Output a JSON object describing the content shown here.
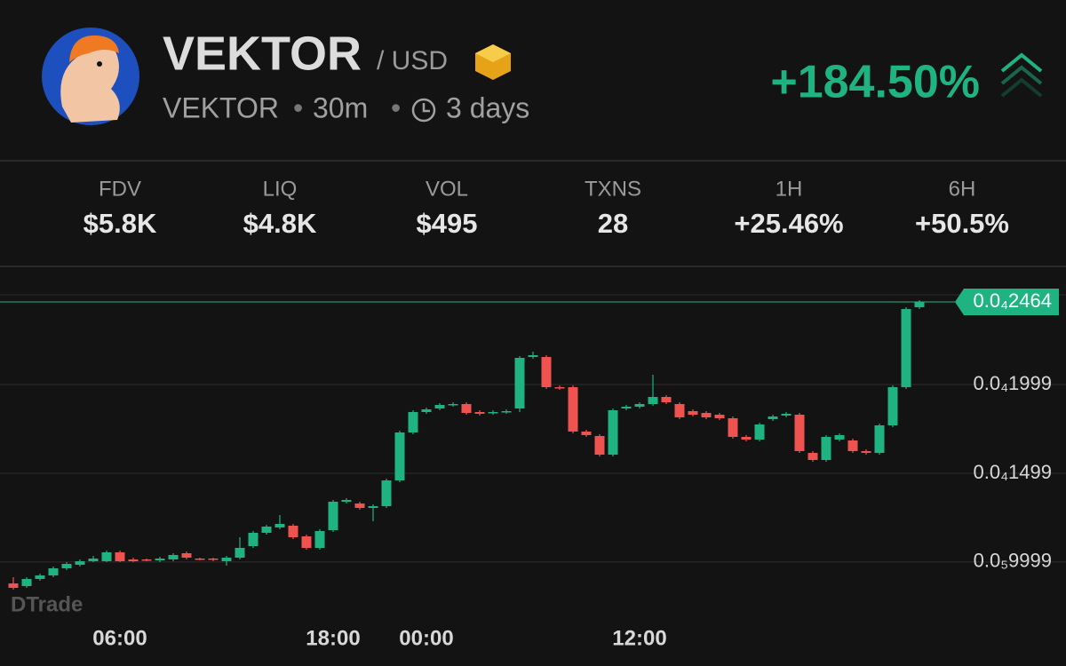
{
  "header": {
    "title": "VEKTOR",
    "quote": "/ USD",
    "symbol": "VEKTOR",
    "timeframe": "30m",
    "age": "3 days",
    "change": "+184.50%"
  },
  "stats": [
    {
      "label": "FDV",
      "value": "$5.8K"
    },
    {
      "label": "LIQ",
      "value": "$4.8K"
    },
    {
      "label": "VOL",
      "value": "$495"
    },
    {
      "label": "TXNS",
      "value": "28"
    },
    {
      "label": "1H",
      "value": "+25.46%"
    },
    {
      "label": "6H",
      "value": "+50.5%"
    }
  ],
  "watermark": "DTrade",
  "chart_data": {
    "type": "candlestick",
    "categories": [
      null,
      null,
      null,
      null,
      null,
      null,
      null,
      null,
      "06:00",
      null,
      null,
      null,
      null,
      null,
      null,
      null,
      null,
      null,
      null,
      null,
      null,
      null,
      null,
      null,
      "18:00",
      null,
      null,
      null,
      null,
      null,
      null,
      "00:00",
      null,
      null,
      null,
      null,
      null,
      null,
      null,
      null,
      null,
      null,
      null,
      null,
      null,
      null,
      null,
      "12:00",
      null,
      null,
      null,
      null,
      null,
      null,
      null,
      null,
      null,
      null,
      null,
      null,
      null,
      null,
      null,
      null,
      null,
      null,
      null,
      null,
      null
    ],
    "open": [
      8.79e-06,
      8.64e-06,
      9.04e-06,
      9.24e-06,
      9.64e-06,
      9.84e-06,
      1.004e-05,
      1.004e-05,
      1.054e-05,
      1.014e-05,
      1.014e-05,
      1.009e-05,
      1.014e-05,
      1.049e-05,
      1.019e-05,
      1.019e-05,
      1.004e-05,
      1.024e-05,
      1.089e-05,
      1.164e-05,
      1.194e-05,
      1.204e-05,
      1.144e-05,
      1.079e-05,
      1.179e-05,
      1.339e-05,
      1.329e-05,
      1.304e-05,
      1.314e-05,
      1.459e-05,
      1.729e-05,
      1.844e-05,
      1.864e-05,
      1.884e-05,
      1.889e-05,
      1.844e-05,
      1.839e-05,
      1.844e-05,
      1.864e-05,
      2.154e-05,
      2.154e-05,
      1.984e-05,
      1.984e-05,
      1.734e-05,
      1.709e-05,
      1.604e-05,
      1.864e-05,
      1.874e-05,
      1.889e-05,
      1.929e-05,
      1.889e-05,
      1.849e-05,
      1.839e-05,
      1.829e-05,
      1.809e-05,
      1.704e-05,
      1.689e-05,
      1.804e-05,
      1.824e-05,
      1.829e-05,
      1.614e-05,
      1.574e-05,
      1.689e-05,
      1.684e-05,
      1.624e-05,
      1.614e-05,
      1.769e-05,
      1.984e-05,
      2.434e-05
    ],
    "high": [
      9.14e-06,
      9.14e-06,
      9.34e-06,
      9.74e-06,
      9.99e-06,
      1.014e-05,
      1.034e-05,
      1.064e-05,
      1.064e-05,
      1.024e-05,
      1.019e-05,
      1.029e-05,
      1.049e-05,
      1.059e-05,
      1.024e-05,
      1.024e-05,
      1.034e-05,
      1.139e-05,
      1.174e-05,
      1.209e-05,
      1.264e-05,
      1.214e-05,
      1.154e-05,
      1.184e-05,
      1.349e-05,
      1.359e-05,
      1.339e-05,
      1.324e-05,
      1.469e-05,
      1.739e-05,
      1.854e-05,
      1.869e-05,
      1.894e-05,
      1.899e-05,
      1.899e-05,
      1.854e-05,
      1.854e-05,
      1.859e-05,
      2.159e-05,
      2.184e-05,
      2.164e-05,
      1.994e-05,
      1.994e-05,
      1.744e-05,
      1.719e-05,
      1.864e-05,
      1.884e-05,
      1.899e-05,
      2.054e-05,
      1.939e-05,
      1.899e-05,
      1.859e-05,
      1.849e-05,
      1.839e-05,
      1.819e-05,
      1.714e-05,
      1.784e-05,
      1.829e-05,
      1.844e-05,
      1.839e-05,
      1.624e-05,
      1.714e-05,
      1.724e-05,
      1.694e-05,
      1.634e-05,
      1.779e-05,
      1.994e-05,
      2.434e-05,
      2.474e-05
    ],
    "low": [
      8.44e-06,
      8.54e-06,
      8.94e-06,
      9.14e-06,
      9.54e-06,
      9.74e-06,
      9.99e-06,
      9.99e-06,
      9.99e-06,
      9.99e-06,
      1.004e-05,
      9.99e-06,
      1.004e-05,
      1.014e-05,
      1.009e-05,
      1.004e-05,
      9.79e-06,
      1.014e-05,
      1.079e-05,
      1.154e-05,
      1.184e-05,
      1.129e-05,
      1.069e-05,
      1.069e-05,
      1.169e-05,
      1.329e-05,
      1.294e-05,
      1.229e-05,
      1.304e-05,
      1.449e-05,
      1.719e-05,
      1.834e-05,
      1.854e-05,
      1.874e-05,
      1.829e-05,
      1.824e-05,
      1.829e-05,
      1.834e-05,
      1.844e-05,
      2.144e-05,
      1.974e-05,
      1.969e-05,
      1.724e-05,
      1.704e-05,
      1.594e-05,
      1.594e-05,
      1.854e-05,
      1.864e-05,
      1.879e-05,
      1.889e-05,
      1.804e-05,
      1.819e-05,
      1.804e-05,
      1.799e-05,
      1.694e-05,
      1.679e-05,
      1.679e-05,
      1.794e-05,
      1.814e-05,
      1.614e-05,
      1.564e-05,
      1.564e-05,
      1.679e-05,
      1.614e-05,
      1.604e-05,
      1.604e-05,
      1.759e-05,
      1.974e-05,
      2.424e-05
    ],
    "close": [
      8.54e-06,
      9.04e-06,
      9.24e-06,
      9.64e-06,
      9.89e-06,
      1.004e-05,
      1.019e-05,
      1.054e-05,
      1.004e-05,
      1.004e-05,
      1.009e-05,
      1.019e-05,
      1.039e-05,
      1.024e-05,
      1.014e-05,
      1.014e-05,
      1.024e-05,
      1.079e-05,
      1.164e-05,
      1.199e-05,
      1.214e-05,
      1.139e-05,
      1.079e-05,
      1.174e-05,
      1.339e-05,
      1.349e-05,
      1.304e-05,
      1.314e-05,
      1.459e-05,
      1.729e-05,
      1.844e-05,
      1.859e-05,
      1.884e-05,
      1.889e-05,
      1.839e-05,
      1.834e-05,
      1.844e-05,
      1.849e-05,
      2.149e-05,
      2.164e-05,
      1.984e-05,
      1.979e-05,
      1.734e-05,
      1.714e-05,
      1.604e-05,
      1.854e-05,
      1.874e-05,
      1.889e-05,
      1.929e-05,
      1.899e-05,
      1.814e-05,
      1.829e-05,
      1.814e-05,
      1.809e-05,
      1.704e-05,
      1.689e-05,
      1.774e-05,
      1.819e-05,
      1.834e-05,
      1.624e-05,
      1.574e-05,
      1.704e-05,
      1.714e-05,
      1.624e-05,
      1.614e-05,
      1.769e-05,
      1.984e-05,
      2.424e-05,
      2.464e-05
    ],
    "up_color": "#1fb382",
    "down_color": "#ef5350",
    "ylim": [
      6.64e-06,
      2.664e-05
    ],
    "yticks": [
      {
        "value": 9.999e-06,
        "label": "0.0₅9999"
      },
      {
        "value": 1.499e-05,
        "label": "0.0₄1499"
      },
      {
        "value": 1.999e-05,
        "label": "0.0₄1999"
      }
    ],
    "grid": true,
    "last_price": {
      "value": 2.464e-05,
      "label": "0.0₄2464"
    }
  }
}
